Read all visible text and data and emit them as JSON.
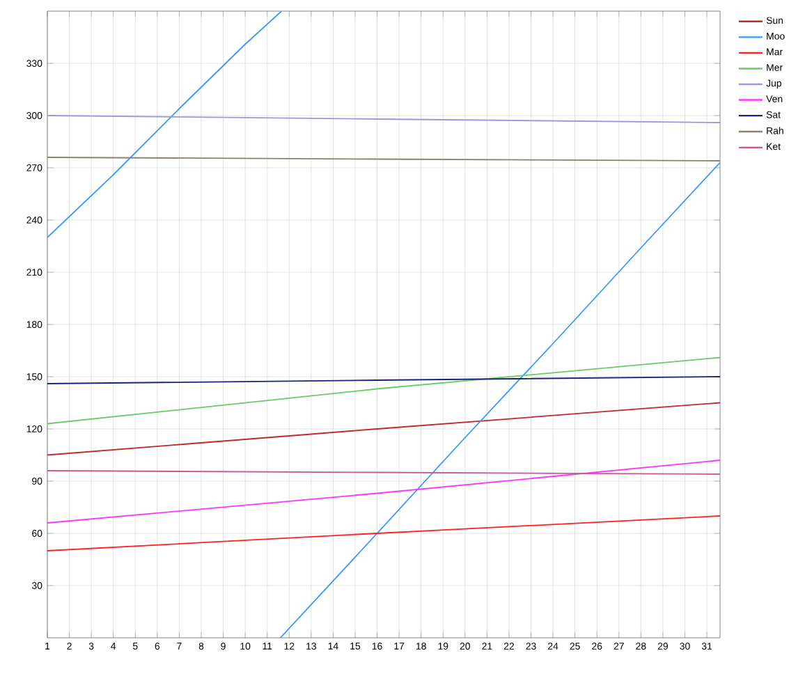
{
  "chart_data": {
    "type": "line",
    "xlim": [
      1,
      31.6
    ],
    "xticks": [
      1,
      2,
      3,
      4,
      5,
      6,
      7,
      8,
      9,
      10,
      11,
      12,
      13,
      14,
      15,
      16,
      17,
      18,
      19,
      20,
      21,
      22,
      23,
      24,
      25,
      26,
      27,
      28,
      29,
      30,
      31
    ],
    "ylim": [
      0,
      360
    ],
    "yticks": [
      30,
      60,
      90,
      120,
      150,
      180,
      210,
      240,
      270,
      300,
      330
    ],
    "grid": true,
    "legend": "top right",
    "marker": "none",
    "line_style": "solid",
    "series": [
      {
        "name": "Sun",
        "color": "#c0282c",
        "x": [
          1,
          16,
          31.6
        ],
        "values": [
          105,
          120,
          135
        ]
      },
      {
        "name": "Moo",
        "color": "#3399ff",
        "x": [
          1,
          4,
          7,
          10,
          11.65,
          11.62,
          11.6,
          16,
          20,
          24,
          28,
          31.6
        ],
        "values": [
          230,
          266,
          304,
          341,
          360,
          null,
          0,
          60,
          115,
          169,
          224,
          273
        ]
      },
      {
        "name": "Mar",
        "color": "#ff2020",
        "x": [
          1,
          16,
          31.6
        ],
        "values": [
          50,
          60,
          70
        ]
      },
      {
        "name": "Mer",
        "color": "#66cc66",
        "x": [
          1,
          16,
          31.6
        ],
        "values": [
          123,
          143,
          161
        ]
      },
      {
        "name": "Jup",
        "color": "#9999dd",
        "x": [
          1,
          16,
          31.6
        ],
        "values": [
          300,
          298,
          296
        ]
      },
      {
        "name": "Ven",
        "color": "#ff33ff",
        "x": [
          1,
          16,
          31.6
        ],
        "values": [
          66,
          83,
          102
        ]
      },
      {
        "name": "Sat",
        "color": "#1a237e",
        "x": [
          1,
          16,
          31.6
        ],
        "values": [
          146,
          148,
          150
        ]
      },
      {
        "name": "Rah",
        "color": "#8c8070",
        "x": [
          1,
          16,
          31.6
        ],
        "values": [
          276,
          275,
          274
        ]
      },
      {
        "name": "Ket",
        "color": "#cc5599",
        "x": [
          1,
          16,
          31.6
        ],
        "values": [
          96,
          95,
          94
        ]
      }
    ]
  }
}
